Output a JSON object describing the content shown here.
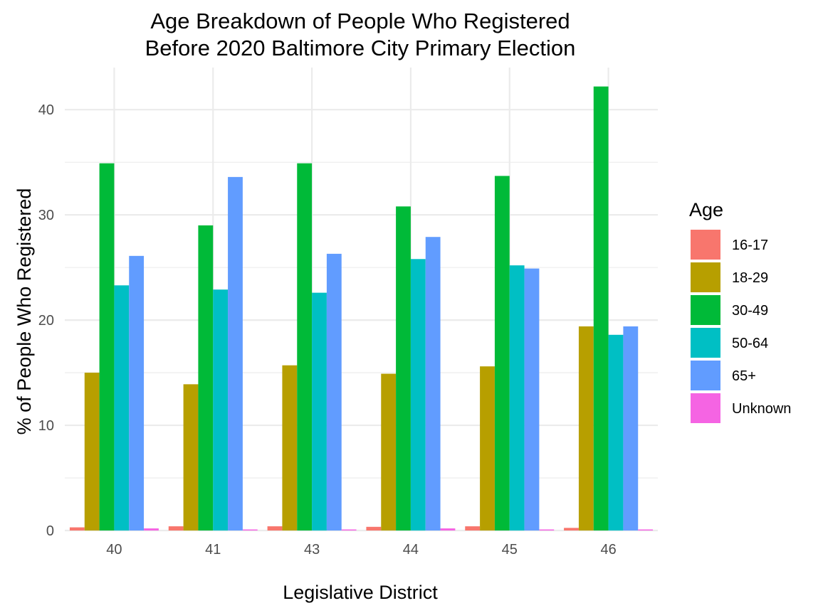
{
  "chart_data": {
    "type": "bar",
    "title": "Age Breakdown of People Who Registered",
    "subtitle": "Before 2020 Baltimore City Primary Election",
    "xlabel": "Legislative District",
    "ylabel": "% of People Who Registered",
    "categories": [
      "40",
      "41",
      "43",
      "44",
      "45",
      "46"
    ],
    "ylim": [
      0,
      44
    ],
    "yticks": [
      0,
      10,
      20,
      30,
      40
    ],
    "grid": true,
    "legend": {
      "title": "Age",
      "placement": "right"
    },
    "series": [
      {
        "name": "16-17",
        "color": "#F8766D",
        "values": [
          0.3,
          0.4,
          0.4,
          0.35,
          0.4,
          0.25
        ]
      },
      {
        "name": "18-29",
        "color": "#B79F00",
        "values": [
          15.0,
          13.9,
          15.7,
          14.9,
          15.6,
          19.4
        ]
      },
      {
        "name": "30-49",
        "color": "#00BA38",
        "values": [
          34.9,
          29.0,
          34.9,
          30.8,
          33.7,
          42.2
        ]
      },
      {
        "name": "50-64",
        "color": "#00BFC4",
        "values": [
          23.3,
          22.9,
          22.6,
          25.8,
          25.2,
          18.6
        ]
      },
      {
        "name": "65+",
        "color": "#619CFF",
        "values": [
          26.1,
          33.6,
          26.3,
          27.9,
          24.9,
          19.4
        ]
      },
      {
        "name": "Unknown",
        "color": "#F564E3",
        "values": [
          0.2,
          0.1,
          0.1,
          0.2,
          0.1,
          0.1
        ]
      }
    ]
  }
}
